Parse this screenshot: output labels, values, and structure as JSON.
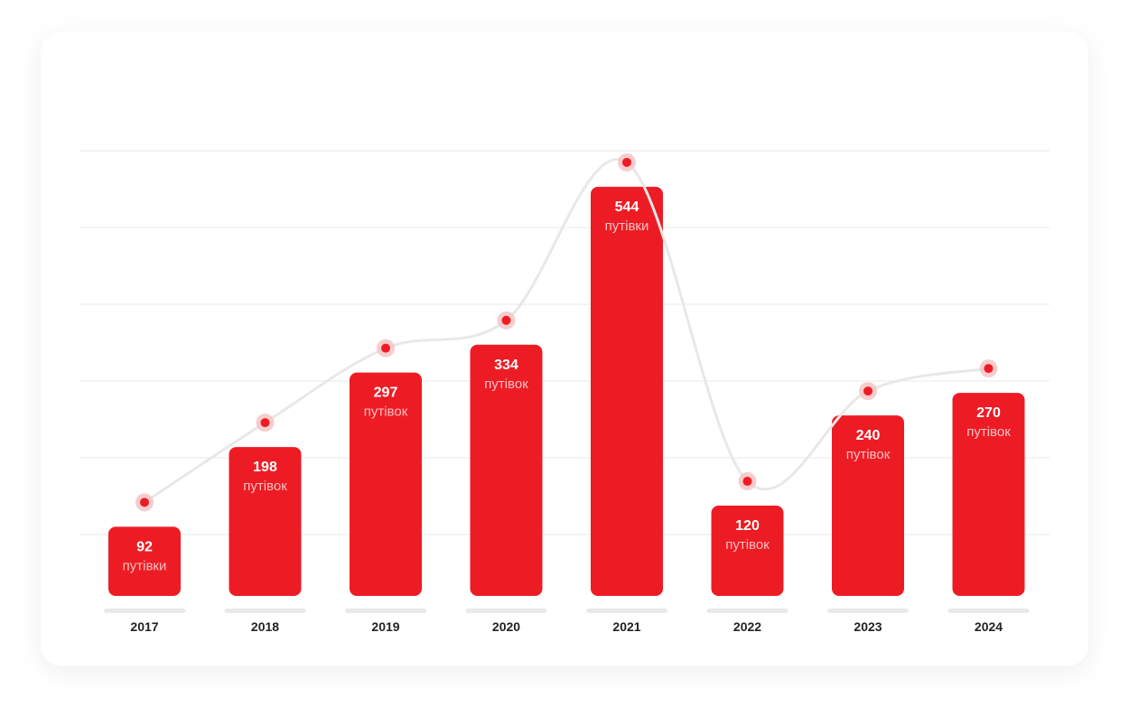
{
  "colors": {
    "bar": "#ED1C24",
    "dot": "#ED1C24",
    "dot_halo": "#F6C4C6",
    "curve": "#E8E8E8",
    "grid": "#E9E9E9",
    "label_bar": "#E9E9E9"
  },
  "chart_data": {
    "type": "bar",
    "categories": [
      "2017",
      "2018",
      "2019",
      "2020",
      "2021",
      "2022",
      "2023",
      "2024"
    ],
    "values": [
      92,
      198,
      297,
      334,
      544,
      120,
      240,
      270
    ],
    "value_units": [
      "путівки",
      "путівок",
      "путівок",
      "путівок",
      "путівки",
      "путівок",
      "путівок",
      "путівок"
    ],
    "title": "",
    "xlabel": "",
    "ylabel": "",
    "ylim": [
      0,
      600
    ],
    "grid": true,
    "legend": "none",
    "overlay": "smoothed line with dot markers following the bar values"
  }
}
